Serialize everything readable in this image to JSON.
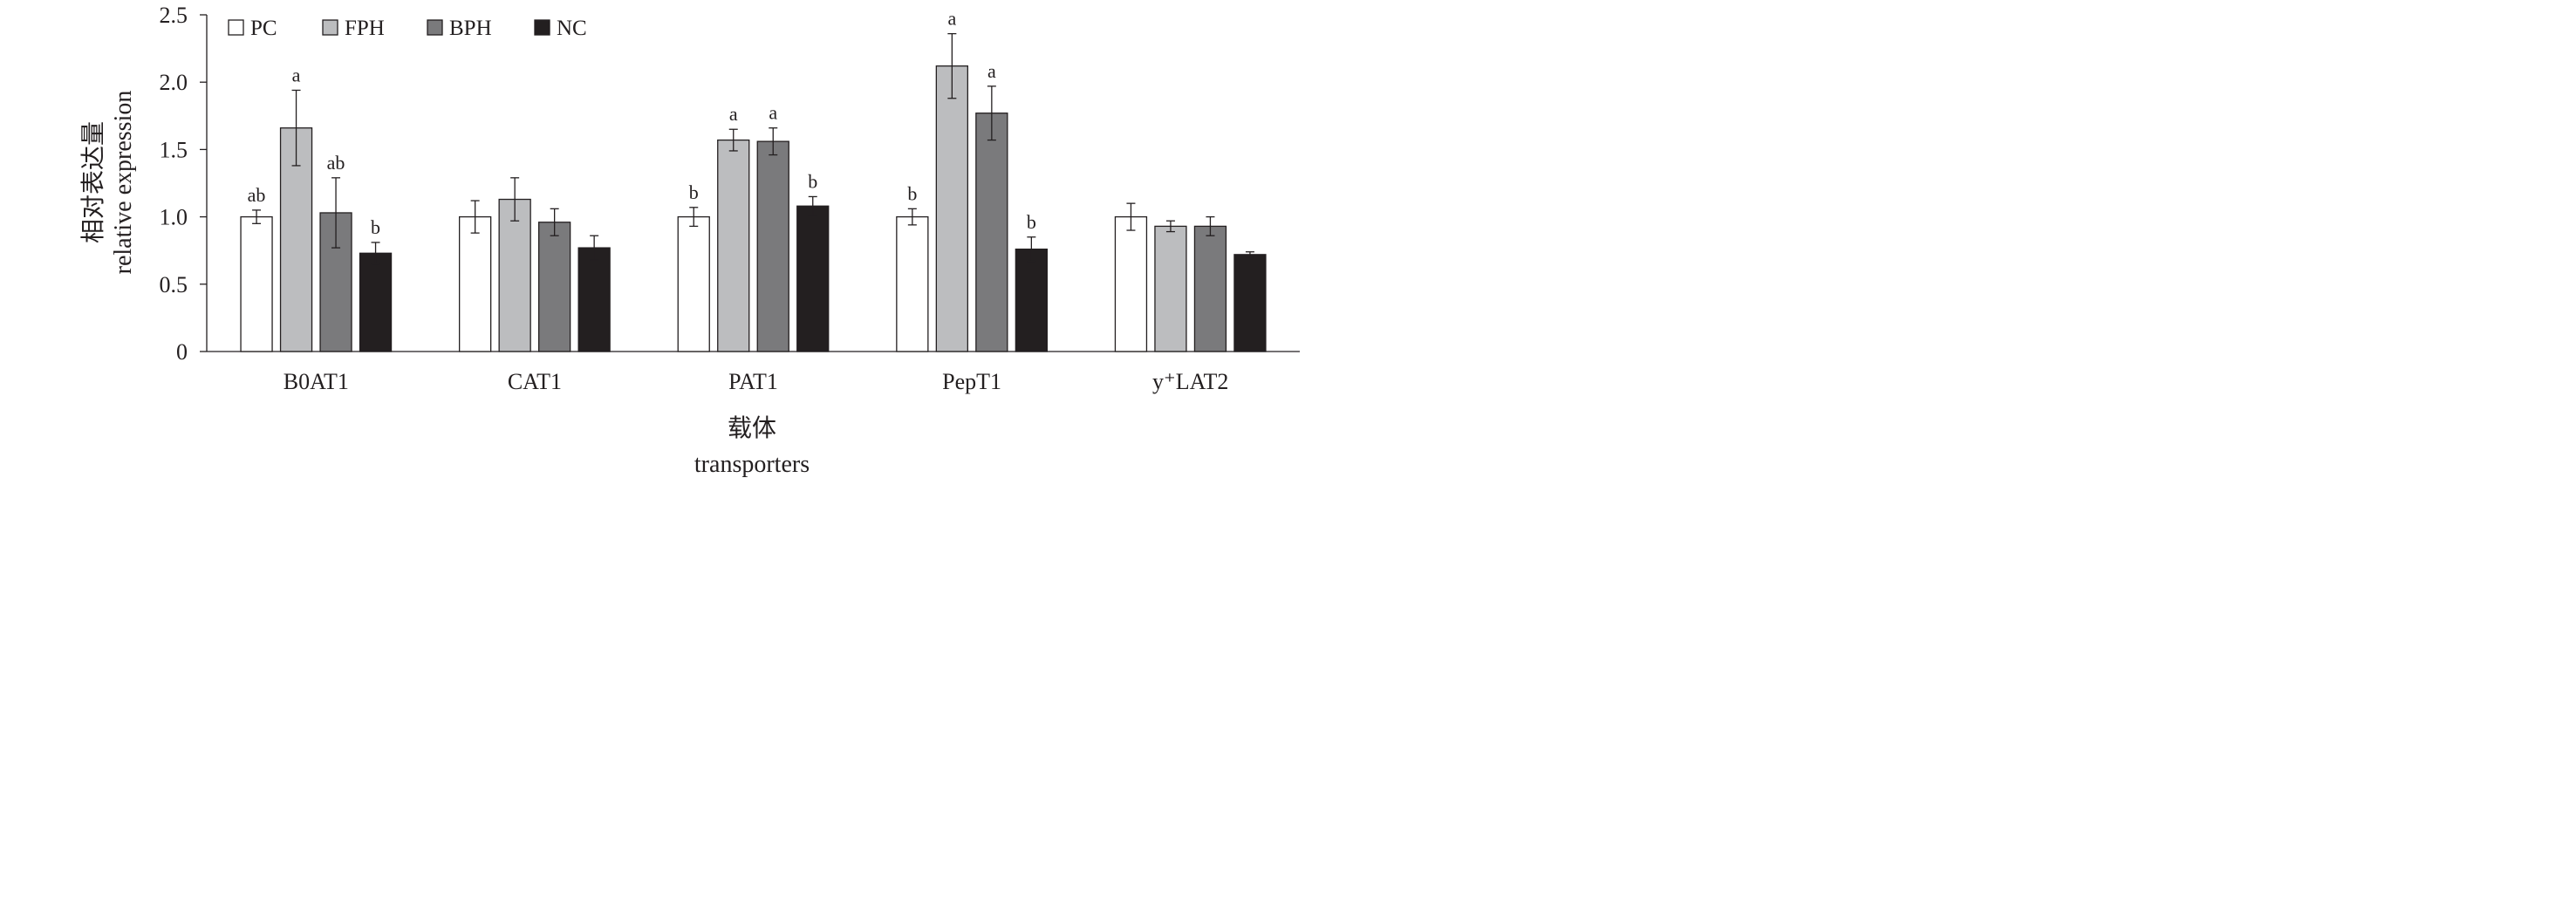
{
  "chart_data": {
    "type": "bar",
    "ylabel_cn": "相对表达量",
    "ylabel_en": "relative expression",
    "xlabel_cn": "载体",
    "xlabel_en": "transporters",
    "ylim": [
      0,
      2.5
    ],
    "yticks": [
      "0",
      "0.5",
      "1.0",
      "1.5",
      "2.0",
      "2.5"
    ],
    "categories": [
      "B0AT1",
      "CAT1",
      "PAT1",
      "PepT1",
      "y⁺LAT2"
    ],
    "legend_position": "top-left",
    "grid": false,
    "series": [
      {
        "name": "PC",
        "color": "#ffffff",
        "values": [
          1.0,
          1.0,
          1.0,
          1.0,
          1.0
        ],
        "errors": [
          0.05,
          0.12,
          0.07,
          0.06,
          0.1
        ],
        "labels": [
          "ab",
          "",
          "b",
          "b",
          ""
        ]
      },
      {
        "name": "FPH",
        "color": "#bcbdbf",
        "values": [
          1.66,
          1.13,
          1.57,
          2.12,
          0.93
        ],
        "errors": [
          0.28,
          0.16,
          0.08,
          0.24,
          0.04
        ],
        "labels": [
          "a",
          "",
          "a",
          "a",
          ""
        ]
      },
      {
        "name": "BPH",
        "color": "#7a7a7c",
        "values": [
          1.03,
          0.96,
          1.56,
          1.77,
          0.93
        ],
        "errors": [
          0.26,
          0.1,
          0.1,
          0.2,
          0.07
        ],
        "labels": [
          "ab",
          "",
          "a",
          "a",
          ""
        ]
      },
      {
        "name": "NC",
        "color": "#231f20",
        "values": [
          0.73,
          0.77,
          1.08,
          0.76,
          0.72
        ],
        "errors": [
          0.08,
          0.09,
          0.07,
          0.09,
          0.02
        ],
        "labels": [
          "b",
          "",
          "b",
          "b",
          ""
        ]
      }
    ]
  }
}
